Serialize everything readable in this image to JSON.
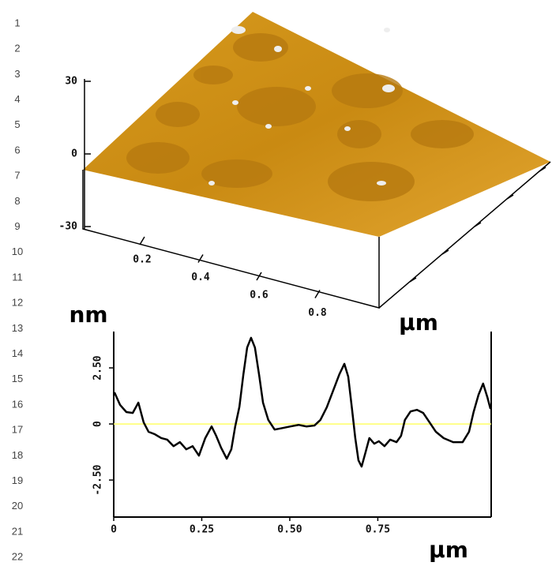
{
  "line_numbers": [
    "1",
    "2",
    "3",
    "4",
    "5",
    "6",
    "7",
    "8",
    "9",
    "10",
    "11",
    "12",
    "13",
    "14",
    "15",
    "16",
    "17",
    "18",
    "19",
    "20",
    "21",
    "22"
  ],
  "surface_3d": {
    "zlim": [
      -30,
      30
    ],
    "zticks": [
      30,
      0,
      -30
    ],
    "xlim": [
      0,
      1
    ],
    "xticks": [
      0.2,
      0.4,
      0.6,
      0.8
    ],
    "z_unit": "nm",
    "x_unit": "μm"
  },
  "chart_data": {
    "type": "line",
    "x_label": "μm",
    "xlim": [
      0,
      1.072
    ],
    "ylim": [
      -4.15,
      4.12
    ],
    "xticks": [
      0,
      {
        "value": 0.25,
        "label": "0.25"
      },
      {
        "value": 0.5,
        "label": "0.50"
      },
      {
        "value": 0.75,
        "label": "0.75"
      }
    ],
    "yticks": [
      {
        "value": -2.5,
        "label": "-2.50"
      },
      0,
      {
        "value": 2.5,
        "label": "2.50"
      }
    ],
    "baseline_color": "#ffff66",
    "series": [
      {
        "color": "#000000",
        "x": [
          0.002,
          0.018,
          0.036,
          0.054,
          0.07,
          0.085,
          0.099,
          0.117,
          0.135,
          0.152,
          0.17,
          0.188,
          0.206,
          0.224,
          0.242,
          0.26,
          0.278,
          0.291,
          0.305,
          0.321,
          0.334,
          0.345,
          0.357,
          0.368,
          0.379,
          0.39,
          0.401,
          0.413,
          0.424,
          0.439,
          0.457,
          0.48,
          0.502,
          0.525,
          0.547,
          0.57,
          0.587,
          0.605,
          0.623,
          0.641,
          0.655,
          0.666,
          0.677,
          0.686,
          0.695,
          0.704,
          0.715,
          0.726,
          0.74,
          0.753,
          0.769,
          0.785,
          0.803,
          0.816,
          0.827,
          0.843,
          0.861,
          0.879,
          0.897,
          0.915,
          0.937,
          0.964,
          0.991,
          1.009,
          1.022,
          1.036,
          1.049,
          1.061,
          1.07
        ],
        "values": [
          1.41,
          0.85,
          0.53,
          0.49,
          0.95,
          0.07,
          -0.35,
          -0.46,
          -0.63,
          -0.7,
          -0.99,
          -0.81,
          -1.13,
          -0.99,
          -1.41,
          -0.63,
          -0.11,
          -0.53,
          -1.06,
          -1.55,
          -1.13,
          -0.11,
          0.77,
          2.18,
          3.41,
          3.84,
          3.41,
          2.18,
          0.95,
          0.18,
          -0.25,
          -0.18,
          -0.11,
          -0.04,
          -0.11,
          -0.07,
          0.18,
          0.74,
          1.48,
          2.22,
          2.68,
          2.11,
          0.63,
          -0.63,
          -1.62,
          -1.9,
          -1.27,
          -0.63,
          -0.88,
          -0.77,
          -0.99,
          -0.7,
          -0.81,
          -0.53,
          0.18,
          0.56,
          0.63,
          0.49,
          0.07,
          -0.35,
          -0.63,
          -0.81,
          -0.81,
          -0.35,
          0.53,
          1.3,
          1.8,
          1.2,
          0.67
        ]
      }
    ]
  }
}
